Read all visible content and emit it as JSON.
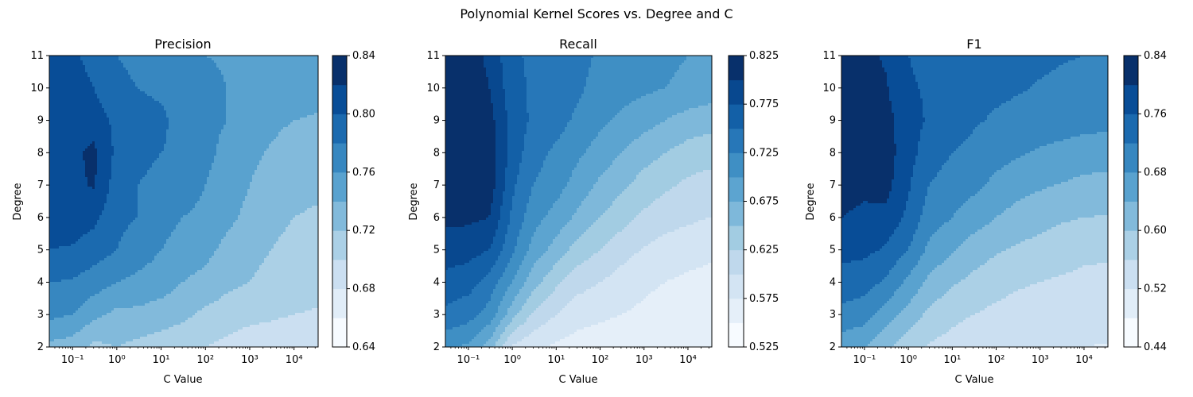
{
  "figure": {
    "suptitle": "Polynomial Kernel Scores vs. Degree and C"
  },
  "chart_data": [
    {
      "type": "heatmap",
      "title": "Precision",
      "xlabel": "C Value",
      "ylabel": "Degree",
      "x_scale": "log",
      "x": [
        0.03,
        0.1,
        0.3,
        1,
        3,
        10,
        30,
        100,
        300,
        1000,
        3000,
        10000,
        30000
      ],
      "y": [
        2,
        3,
        4,
        5,
        6,
        7,
        8,
        9,
        10,
        11
      ],
      "xlim": [
        0.03,
        35000
      ],
      "ylim": [
        2,
        11
      ],
      "x_ticks": [
        {
          "value": 0.1,
          "label": "10⁻¹"
        },
        {
          "value": 1,
          "label": "10⁰"
        },
        {
          "value": 10,
          "label": "10¹"
        },
        {
          "value": 100,
          "label": "10²"
        },
        {
          "value": 1000,
          "label": "10³"
        },
        {
          "value": 10000,
          "label": "10⁴"
        }
      ],
      "y_ticks": [
        "2",
        "3",
        "4",
        "5",
        "6",
        "7",
        "8",
        "9",
        "10",
        "11"
      ],
      "levels": [
        0.64,
        0.66,
        0.68,
        0.7,
        0.72,
        0.74,
        0.76,
        0.78,
        0.8,
        0.82,
        0.84
      ],
      "colorbar_ticks": [
        "0.64",
        "0.68",
        "0.72",
        "0.76",
        "0.80",
        "0.84"
      ],
      "z": [
        [
          0.735,
          0.73,
          0.715,
          0.72,
          0.715,
          0.71,
          0.705,
          0.7,
          0.695,
          0.69,
          0.688,
          0.685,
          0.683
        ],
        [
          0.765,
          0.76,
          0.745,
          0.735,
          0.735,
          0.73,
          0.725,
          0.715,
          0.71,
          0.705,
          0.703,
          0.7,
          0.698
        ],
        [
          0.78,
          0.778,
          0.77,
          0.76,
          0.755,
          0.75,
          0.74,
          0.735,
          0.725,
          0.72,
          0.715,
          0.71,
          0.708
        ],
        [
          0.8,
          0.798,
          0.79,
          0.78,
          0.77,
          0.76,
          0.75,
          0.745,
          0.735,
          0.725,
          0.72,
          0.715,
          0.713
        ],
        [
          0.81,
          0.81,
          0.805,
          0.785,
          0.78,
          0.77,
          0.76,
          0.755,
          0.745,
          0.735,
          0.725,
          0.72,
          0.718
        ],
        [
          0.815,
          0.815,
          0.822,
          0.79,
          0.78,
          0.775,
          0.77,
          0.76,
          0.75,
          0.74,
          0.73,
          0.725,
          0.723
        ],
        [
          0.815,
          0.815,
          0.825,
          0.795,
          0.785,
          0.78,
          0.775,
          0.765,
          0.755,
          0.745,
          0.738,
          0.73,
          0.728
        ],
        [
          0.81,
          0.812,
          0.81,
          0.795,
          0.79,
          0.785,
          0.77,
          0.765,
          0.76,
          0.75,
          0.745,
          0.74,
          0.738
        ],
        [
          0.805,
          0.808,
          0.8,
          0.785,
          0.78,
          0.775,
          0.77,
          0.765,
          0.76,
          0.758,
          0.755,
          0.75,
          0.748
        ],
        [
          0.8,
          0.802,
          0.795,
          0.78,
          0.775,
          0.77,
          0.765,
          0.76,
          0.758,
          0.755,
          0.752,
          0.75,
          0.748
        ]
      ]
    },
    {
      "type": "heatmap",
      "title": "Recall",
      "xlabel": "C Value",
      "ylabel": "Degree",
      "x_scale": "log",
      "x": [
        0.03,
        0.1,
        0.3,
        1,
        3,
        10,
        30,
        100,
        300,
        1000,
        3000,
        10000,
        30000
      ],
      "y": [
        2,
        3,
        4,
        5,
        6,
        7,
        8,
        9,
        10,
        11
      ],
      "xlim": [
        0.03,
        35000
      ],
      "ylim": [
        2,
        11
      ],
      "x_ticks": [
        {
          "value": 0.1,
          "label": "10⁻¹"
        },
        {
          "value": 1,
          "label": "10⁰"
        },
        {
          "value": 10,
          "label": "10¹"
        },
        {
          "value": 100,
          "label": "10²"
        },
        {
          "value": 1000,
          "label": "10³"
        },
        {
          "value": 10000,
          "label": "10⁴"
        }
      ],
      "y_ticks": [
        "2",
        "3",
        "4",
        "5",
        "6",
        "7",
        "8",
        "9",
        "10",
        "11"
      ],
      "levels": [
        0.525,
        0.55,
        0.575,
        0.6,
        0.625,
        0.65,
        0.675,
        0.7,
        0.725,
        0.75,
        0.775,
        0.8,
        0.825
      ],
      "colorbar_ticks": [
        "0.525",
        "0.575",
        "0.625",
        "0.675",
        "0.725",
        "0.775",
        "0.825"
      ],
      "z": [
        [
          0.705,
          0.695,
          0.665,
          0.595,
          0.58,
          0.57,
          0.565,
          0.56,
          0.558,
          0.556,
          0.555,
          0.555,
          0.553
        ],
        [
          0.745,
          0.735,
          0.715,
          0.66,
          0.62,
          0.6,
          0.585,
          0.58,
          0.575,
          0.57,
          0.565,
          0.56,
          0.558
        ],
        [
          0.765,
          0.76,
          0.74,
          0.7,
          0.66,
          0.63,
          0.61,
          0.6,
          0.59,
          0.58,
          0.575,
          0.57,
          0.568
        ],
        [
          0.79,
          0.785,
          0.775,
          0.73,
          0.69,
          0.665,
          0.64,
          0.625,
          0.61,
          0.598,
          0.59,
          0.585,
          0.58
        ],
        [
          0.805,
          0.805,
          0.8,
          0.745,
          0.71,
          0.69,
          0.67,
          0.65,
          0.635,
          0.62,
          0.61,
          0.605,
          0.6
        ],
        [
          0.815,
          0.81,
          0.815,
          0.755,
          0.725,
          0.71,
          0.69,
          0.67,
          0.655,
          0.64,
          0.63,
          0.62,
          0.615
        ],
        [
          0.82,
          0.82,
          0.815,
          0.765,
          0.735,
          0.72,
          0.705,
          0.69,
          0.675,
          0.66,
          0.65,
          0.64,
          0.635
        ],
        [
          0.82,
          0.82,
          0.81,
          0.765,
          0.745,
          0.735,
          0.72,
          0.705,
          0.695,
          0.685,
          0.675,
          0.665,
          0.66
        ],
        [
          0.815,
          0.815,
          0.8,
          0.76,
          0.745,
          0.74,
          0.73,
          0.715,
          0.71,
          0.705,
          0.7,
          0.695,
          0.69
        ],
        [
          0.81,
          0.81,
          0.795,
          0.755,
          0.745,
          0.74,
          0.735,
          0.72,
          0.715,
          0.71,
          0.705,
          0.7,
          0.698
        ]
      ]
    },
    {
      "type": "heatmap",
      "title": "F1",
      "xlabel": "C Value",
      "ylabel": "Degree",
      "x_scale": "log",
      "x": [
        0.03,
        0.1,
        0.3,
        1,
        3,
        10,
        30,
        100,
        300,
        1000,
        3000,
        10000,
        30000
      ],
      "y": [
        2,
        3,
        4,
        5,
        6,
        7,
        8,
        9,
        10,
        11
      ],
      "xlim": [
        0.03,
        35000
      ],
      "ylim": [
        2,
        11
      ],
      "x_ticks": [
        {
          "value": 0.1,
          "label": "10⁻¹"
        },
        {
          "value": 1,
          "label": "10⁰"
        },
        {
          "value": 10,
          "label": "10¹"
        },
        {
          "value": 100,
          "label": "10²"
        },
        {
          "value": 1000,
          "label": "10³"
        },
        {
          "value": 10000,
          "label": "10⁴"
        }
      ],
      "y_ticks": [
        "2",
        "3",
        "4",
        "5",
        "6",
        "7",
        "8",
        "9",
        "10",
        "11"
      ],
      "levels": [
        0.44,
        0.48,
        0.52,
        0.56,
        0.6,
        0.64,
        0.68,
        0.72,
        0.76,
        0.8,
        0.84
      ],
      "colorbar_ticks": [
        "0.44",
        "0.52",
        "0.60",
        "0.68",
        "0.76",
        "0.84"
      ],
      "z": [
        [
          0.655,
          0.64,
          0.61,
          0.575,
          0.555,
          0.545,
          0.535,
          0.528,
          0.524,
          0.522,
          0.52,
          0.52,
          0.518
        ],
        [
          0.71,
          0.7,
          0.66,
          0.625,
          0.59,
          0.57,
          0.56,
          0.55,
          0.545,
          0.54,
          0.538,
          0.535,
          0.533
        ],
        [
          0.74,
          0.735,
          0.715,
          0.67,
          0.63,
          0.605,
          0.59,
          0.575,
          0.565,
          0.56,
          0.555,
          0.55,
          0.548
        ],
        [
          0.775,
          0.77,
          0.755,
          0.72,
          0.67,
          0.645,
          0.62,
          0.605,
          0.595,
          0.585,
          0.578,
          0.57,
          0.568
        ],
        [
          0.8,
          0.795,
          0.79,
          0.75,
          0.7,
          0.68,
          0.66,
          0.64,
          0.625,
          0.615,
          0.605,
          0.6,
          0.598
        ],
        [
          0.81,
          0.805,
          0.815,
          0.765,
          0.72,
          0.7,
          0.69,
          0.67,
          0.655,
          0.645,
          0.638,
          0.63,
          0.628
        ],
        [
          0.815,
          0.815,
          0.82,
          0.775,
          0.74,
          0.72,
          0.71,
          0.695,
          0.685,
          0.675,
          0.668,
          0.66,
          0.658
        ],
        [
          0.82,
          0.82,
          0.815,
          0.775,
          0.755,
          0.74,
          0.725,
          0.715,
          0.71,
          0.705,
          0.7,
          0.695,
          0.693
        ],
        [
          0.82,
          0.818,
          0.805,
          0.765,
          0.755,
          0.745,
          0.735,
          0.728,
          0.723,
          0.718,
          0.715,
          0.712,
          0.71
        ],
        [
          0.815,
          0.812,
          0.795,
          0.76,
          0.75,
          0.745,
          0.74,
          0.735,
          0.73,
          0.725,
          0.722,
          0.72,
          0.718
        ]
      ]
    }
  ]
}
